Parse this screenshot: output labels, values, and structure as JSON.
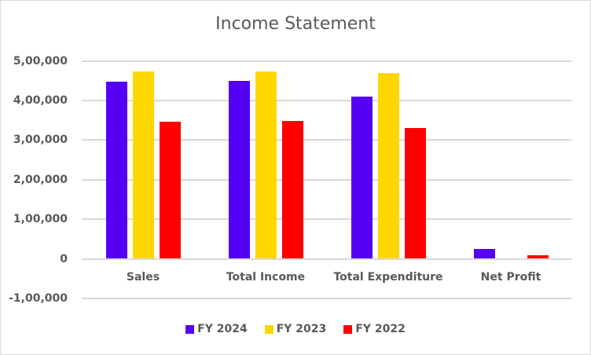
{
  "chart_data": {
    "type": "bar",
    "title": "Income Statement",
    "xlabel": "",
    "ylabel": "",
    "categories": [
      "Sales",
      "Total Income",
      "Total Expenditure",
      "Net Profit"
    ],
    "series": [
      {
        "name": "FY 2024",
        "color": "#5500F5",
        "values": [
          448000,
          449000,
          409000,
          24000
        ]
      },
      {
        "name": "FY 2023",
        "color": "#FFD700",
        "values": [
          473000,
          473000,
          469000,
          0
        ]
      },
      {
        "name": "FY 2022",
        "color": "#FF0000",
        "values": [
          346000,
          348000,
          330000,
          8500
        ]
      }
    ],
    "ylim": [
      -100000,
      500000
    ],
    "yticks": [
      500000,
      400000,
      300000,
      200000,
      100000,
      0,
      -100000
    ],
    "ytick_labels": [
      "5,00,000",
      "4,00,000",
      "3,00,000",
      "2,00,000",
      "1,00,000",
      "0",
      "-1,00,000"
    ],
    "grid": true,
    "legend_position": "bottom"
  }
}
